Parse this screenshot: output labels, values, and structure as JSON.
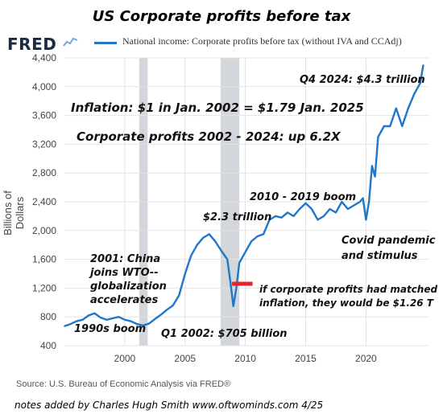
{
  "header": {
    "title": "US Corporate profits before tax",
    "logo_text": "FRED",
    "legend_label": "National income: Corporate profits before tax (without IVA and CCAdj)"
  },
  "footer": {
    "source": "Source: U.S. Bureau of Economic Analysis via FRED®",
    "notes": "notes added by Charles Hugh Smith   www.oftwominds.com   4/25"
  },
  "colors": {
    "line": "#1f77c8",
    "recession": "#d3d6da",
    "marker": "#e8242a"
  },
  "chart_data": {
    "type": "line",
    "ylabel": "Billions of Dollars",
    "xlabel": "",
    "ylim": [
      400,
      4400
    ],
    "xlim": [
      1995.0,
      2025.25
    ],
    "yticks": [
      400,
      800,
      1200,
      1600,
      2000,
      2400,
      2800,
      3200,
      3600,
      4000,
      4400
    ],
    "yticklabels": [
      "400",
      "800",
      "1,200",
      "1,600",
      "2,000",
      "2,400",
      "2,800",
      "3,200",
      "3,600",
      "4,000",
      "4,400"
    ],
    "xticks": [
      2000,
      2005,
      2010,
      2015,
      2020
    ],
    "xticklabels": [
      "2000",
      "2005",
      "2010",
      "2015",
      "2020"
    ],
    "grid": true,
    "recessions": [
      [
        2001.2,
        2001.9
      ],
      [
        2007.95,
        2009.5
      ]
    ],
    "series": [
      {
        "name": "National income: Corporate profits before tax (without IVA and CCAdj)",
        "x": [
          1995.0,
          1995.5,
          1996.0,
          1996.5,
          1997.0,
          1997.5,
          1998.0,
          1998.5,
          1999.0,
          1999.5,
          2000.0,
          2000.5,
          2001.0,
          2001.5,
          2002.0,
          2002.5,
          2003.0,
          2003.5,
          2004.0,
          2004.5,
          2005.0,
          2005.5,
          2006.0,
          2006.5,
          2007.0,
          2007.5,
          2008.0,
          2008.5,
          2008.75,
          2009.0,
          2009.25,
          2009.5,
          2010.0,
          2010.5,
          2011.0,
          2011.5,
          2012.0,
          2012.5,
          2013.0,
          2013.5,
          2014.0,
          2014.5,
          2015.0,
          2015.5,
          2016.0,
          2016.5,
          2017.0,
          2017.5,
          2018.0,
          2018.5,
          2019.0,
          2019.5,
          2019.75,
          2020.0,
          2020.25,
          2020.5,
          2020.75,
          2021.0,
          2021.5,
          2022.0,
          2022.5,
          2023.0,
          2023.5,
          2024.0,
          2024.5,
          2024.75
        ],
        "values": [
          670,
          700,
          740,
          760,
          820,
          850,
          790,
          760,
          780,
          800,
          760,
          740,
          700,
          680,
          705,
          770,
          830,
          900,
          960,
          1100,
          1400,
          1650,
          1800,
          1900,
          1950,
          1850,
          1720,
          1600,
          1300,
          950,
          1200,
          1550,
          1700,
          1850,
          1920,
          1950,
          2150,
          2200,
          2180,
          2250,
          2200,
          2300,
          2380,
          2300,
          2150,
          2200,
          2300,
          2250,
          2400,
          2300,
          2350,
          2400,
          2450,
          2150,
          2400,
          2900,
          2750,
          3300,
          3450,
          3450,
          3700,
          3450,
          3700,
          3900,
          4050,
          4300
        ]
      }
    ],
    "annotations": {
      "a_1990s": "1990s boom",
      "a_2001": [
        "2001: China",
        "joins WTO--",
        "globalization",
        "accelerates"
      ],
      "a_q1_2002": "Q1 2002: $705 billion",
      "a_2_3": "$2.3 trillion",
      "a_2010": "2010 - 2019 boom",
      "a_covid": [
        "Covid pandemic",
        "and stimulus"
      ],
      "a_q4_2024": "Q4 2024: $4.3 trillion",
      "a_inflation": "Inflation: $1 in Jan. 2002 = $1.79 Jan. 2025",
      "a_profits": "Corporate profits 2002 - 2024: up 6.2X",
      "a_matched": [
        "if corporate profits had matched",
        "inflation, they would be $1.26 T"
      ],
      "marker_value": 1260,
      "marker_x": [
        2008.9,
        2010.6
      ]
    }
  }
}
